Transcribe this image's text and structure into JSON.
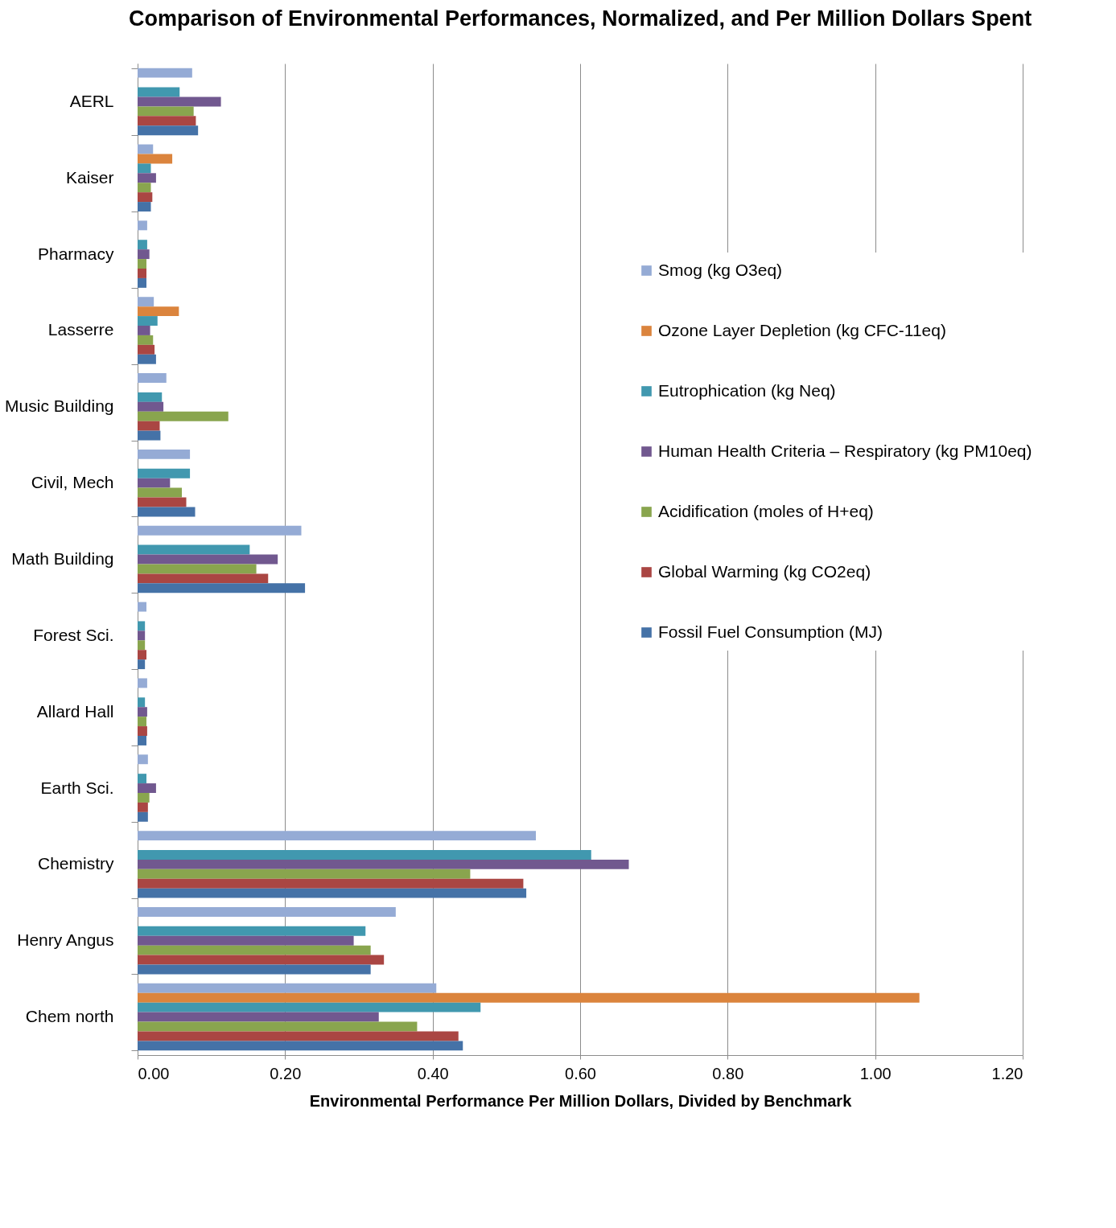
{
  "chart_data": {
    "type": "bar",
    "orientation": "horizontal",
    "title": "Comparison of Environmental Performances, Normalized, and Per Million Dollars Spent",
    "xlabel": "Environmental Performance Per Million Dollars, Divided by Benchmark",
    "categories": [
      "AERL",
      "Kaiser",
      "Pharmacy",
      "Lasserre",
      "Music Building",
      "Civil, Mech",
      "Math Building",
      "Forest Sci.",
      "Allard Hall",
      "Earth Sci.",
      "Chemistry",
      "Henry Angus",
      "Chem north"
    ],
    "series": [
      {
        "name": "Smog (kg O3eq)",
        "color": "#95abd5",
        "values": [
          0.074,
          0.021,
          0.013,
          0.022,
          0.039,
          0.071,
          0.222,
          0.012,
          0.013,
          0.014,
          0.54,
          0.35,
          0.405
        ]
      },
      {
        "name": "Ozone Layer Depletion (kg CFC-11eq)",
        "color": "#db843d",
        "values": [
          null,
          0.047,
          null,
          0.056,
          null,
          null,
          null,
          null,
          null,
          null,
          null,
          null,
          1.06
        ]
      },
      {
        "name": "Eutrophication (kg Neq)",
        "color": "#4198af",
        "values": [
          0.057,
          0.018,
          0.013,
          0.027,
          0.033,
          0.071,
          0.152,
          0.01,
          0.01,
          0.012,
          0.615,
          0.309,
          0.465
        ]
      },
      {
        "name": "Human Health Criteria – Respiratory (kg PM10eq)",
        "color": "#71588f",
        "values": [
          0.113,
          0.025,
          0.016,
          0.017,
          0.035,
          0.044,
          0.19,
          0.01,
          0.013,
          0.025,
          0.666,
          0.293,
          0.327
        ]
      },
      {
        "name": "Acidification (moles of H+eq)",
        "color": "#89a54e",
        "values": [
          0.076,
          0.018,
          0.012,
          0.021,
          0.123,
          0.06,
          0.161,
          0.01,
          0.012,
          0.016,
          0.451,
          0.316,
          0.379
        ]
      },
      {
        "name": "Global Warming (kg CO2eq)",
        "color": "#aa4643",
        "values": [
          0.079,
          0.02,
          0.012,
          0.023,
          0.03,
          0.066,
          0.177,
          0.012,
          0.013,
          0.014,
          0.523,
          0.334,
          0.435
        ]
      },
      {
        "name": "Fossil Fuel Consumption (MJ)",
        "color": "#4572a7",
        "values": [
          0.082,
          0.018,
          0.012,
          0.025,
          0.031,
          0.078,
          0.227,
          0.01,
          0.012,
          0.014,
          0.527,
          0.316,
          0.441
        ]
      }
    ],
    "xlim": [
      0,
      1.2
    ],
    "xticks": [
      {
        "value": 0,
        "label": "0.00"
      },
      {
        "value": 0.2,
        "label": "0.20"
      },
      {
        "value": 0.4,
        "label": "0.40"
      },
      {
        "value": 0.6,
        "label": "0.60"
      },
      {
        "value": 0.8,
        "label": "0.80"
      },
      {
        "value": 1.0,
        "label": "1.00"
      },
      {
        "value": 1.2,
        "label": "1.20"
      }
    ],
    "grid": "x",
    "legend": "right"
  }
}
